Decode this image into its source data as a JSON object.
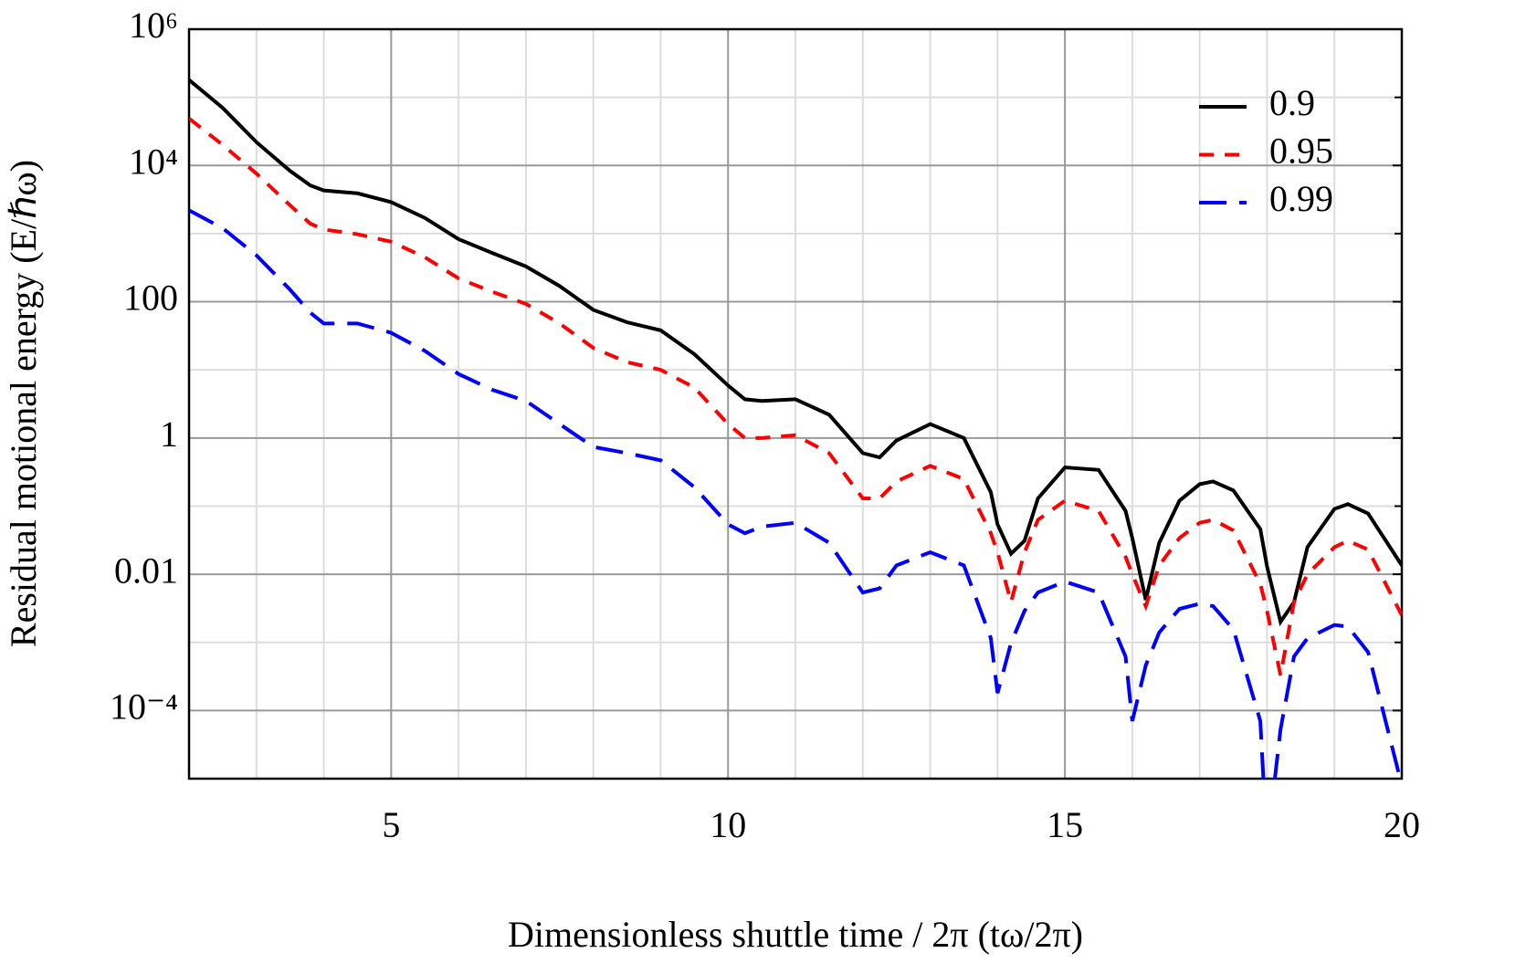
{
  "chart_data": {
    "type": "line",
    "xlabel": "Dimensionless shuttle time / 2π (tω/2π)",
    "ylabel": "Residual motional energy (E/ℏω)",
    "ylog": true,
    "grid": true,
    "legend": "upper right",
    "xlim": [
      2,
      20
    ],
    "xticks": [
      5,
      10,
      15,
      20
    ],
    "minor_xticks": [
      3,
      4,
      6,
      7,
      8,
      9,
      11,
      12,
      13,
      14,
      16,
      17,
      18,
      19
    ],
    "ylim": [
      1e-05,
      1000000
    ],
    "yticks": [
      {
        "value": 1000000,
        "label": "10⁶"
      },
      {
        "value": 10000,
        "label": "10⁴"
      },
      100,
      1,
      0.01,
      {
        "value": 0.0001,
        "label": "10⁻⁴"
      }
    ],
    "minor_yticks": [
      100000,
      1000,
      10,
      0.1,
      0.001
    ],
    "x": [
      2,
      2.5,
      3,
      3.5,
      3.8,
      4,
      4.5,
      5,
      5.5,
      6,
      6.5,
      7,
      7.5,
      8,
      8.5,
      9,
      9.5,
      10,
      10.25,
      10.5,
      11,
      11.5,
      12,
      12.25,
      12.5,
      13,
      13.5,
      13.9,
      14,
      14.2,
      14.4,
      14.6,
      15,
      15.5,
      15.9,
      16,
      16.2,
      16.4,
      16.7,
      17,
      17.2,
      17.5,
      17.9,
      18,
      18.2,
      18.4,
      18.6,
      19,
      19.2,
      19.5,
      20
    ],
    "series": [
      {
        "name": "0.9",
        "color": "#000000",
        "dash": "solid",
        "values": [
          180000,
          70000,
          22000,
          8300,
          5100,
          4300,
          3900,
          2900,
          1700,
          830,
          520,
          330,
          170,
          76,
          50,
          38,
          17,
          5.9,
          3.7,
          3.5,
          3.7,
          2.2,
          0.6,
          0.52,
          0.92,
          1.6,
          1,
          0.16,
          0.054,
          0.02,
          0.031,
          0.13,
          0.37,
          0.34,
          0.085,
          0.034,
          0.0042,
          0.029,
          0.12,
          0.21,
          0.23,
          0.17,
          0.046,
          0.013,
          0.002,
          0.0039,
          0.025,
          0.091,
          0.107,
          0.078,
          0.0135
        ]
      },
      {
        "name": "0.95",
        "color": "#ff0000",
        "dash": "short",
        "values": [
          49000,
          20000,
          7600,
          2600,
          1400,
          1150,
          980,
          760,
          450,
          220,
          140,
          93,
          48,
          21,
          13,
          10,
          5.5,
          1.6,
          1,
          1,
          1.1,
          0.6,
          0.13,
          0.13,
          0.23,
          0.39,
          0.25,
          0.04,
          0.021,
          0.0039,
          0.021,
          0.063,
          0.12,
          0.085,
          0.018,
          0.01,
          0.0034,
          0.0135,
          0.034,
          0.057,
          0.063,
          0.044,
          0.0072,
          0.0029,
          0.00033,
          0.0039,
          0.01,
          0.025,
          0.031,
          0.023,
          0.0025
        ]
      },
      {
        "name": "0.99",
        "color": "#0000ff",
        "dash": "long",
        "values": [
          2200,
          1200,
          480,
          150,
          69,
          48,
          48,
          35,
          19,
          8.7,
          5.1,
          3.5,
          1.6,
          0.74,
          0.6,
          0.47,
          0.19,
          0.054,
          0.04,
          0.05,
          0.057,
          0.029,
          0.0054,
          0.0062,
          0.0135,
          0.021,
          0.0135,
          0.00115,
          0.00018,
          0.00098,
          0.0029,
          0.0054,
          0.0078,
          0.0054,
          0.00062,
          7e-05,
          0.00046,
          0.0014,
          0.0031,
          0.0037,
          0.0034,
          0.00155,
          7e-05,
          1e-06,
          5.3e-05,
          0.00062,
          0.00115,
          0.0018,
          0.0017,
          0.00072,
          8e-06
        ]
      }
    ]
  }
}
